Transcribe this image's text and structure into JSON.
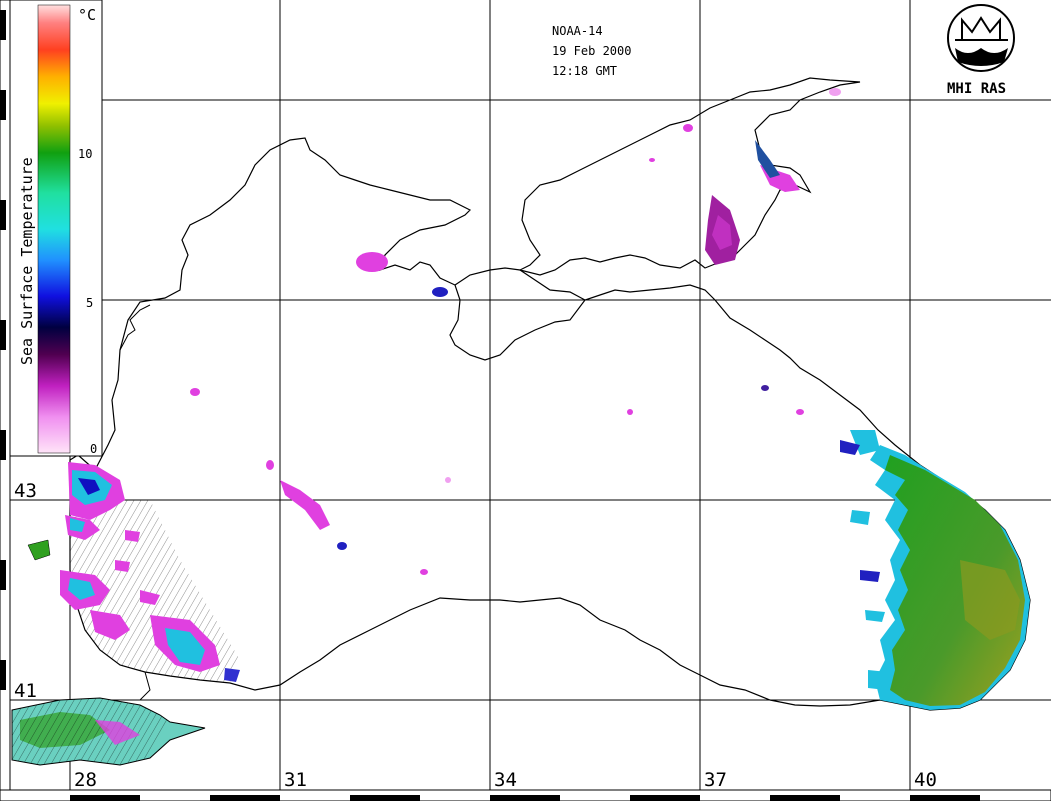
{
  "header": {
    "satellite": "NOAA-14",
    "date": "19 Feb 2000",
    "time": "12:18 GMT"
  },
  "logo": {
    "text": "MHI RAS"
  },
  "colorbar": {
    "title": "Sea Surface Temperature",
    "unit": "°C",
    "ticks": [
      "10",
      "5",
      "0"
    ]
  },
  "axes": {
    "lon_labels": [
      "28",
      "31",
      "34",
      "37",
      "40"
    ],
    "lat_labels": [
      "43",
      "41"
    ]
  },
  "colors": {
    "coast": "#000000",
    "warm_sst": "#2a9a10",
    "mid_sst": "#20c0e0",
    "cold_sst": "#e030e0"
  },
  "icons": [
    "mhi-ras-logo-icon"
  ]
}
